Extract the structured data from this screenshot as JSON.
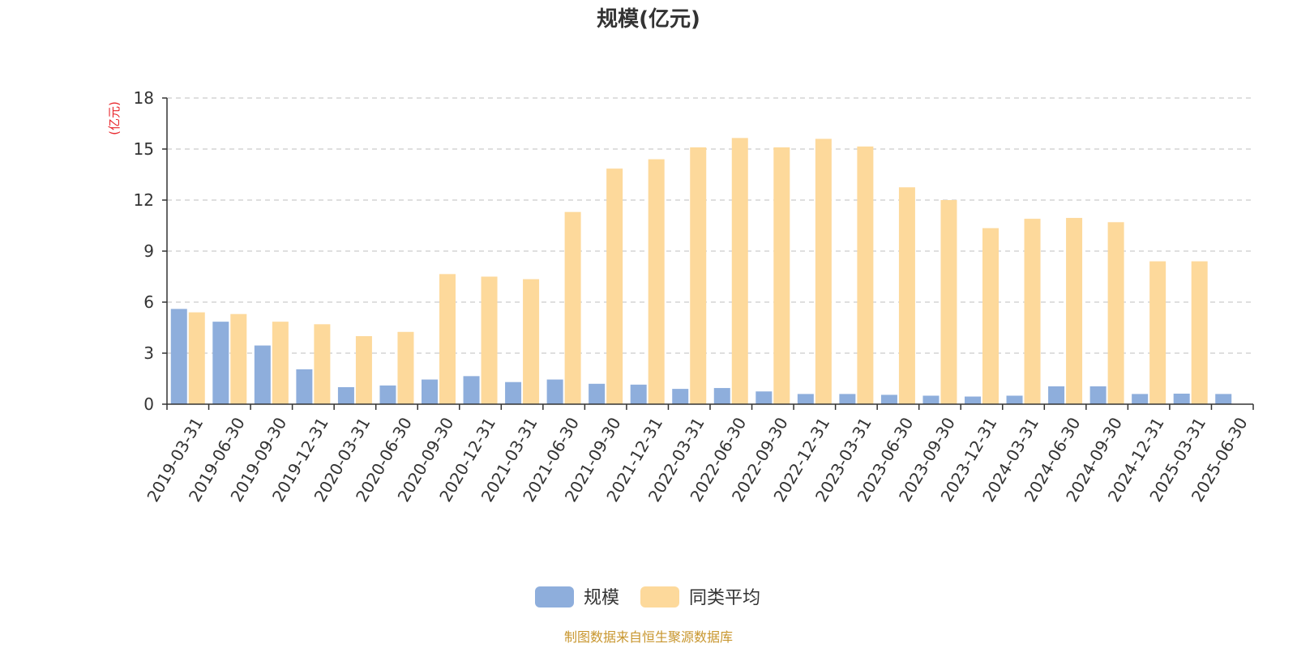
{
  "chart_data": {
    "type": "bar",
    "title": "规模(亿元)",
    "ylabel": "(亿元)",
    "xlabel": "",
    "ylim": [
      0,
      18
    ],
    "yticks": [
      0,
      3,
      6,
      9,
      12,
      15,
      18
    ],
    "grid": true,
    "legend_position": "bottom-center",
    "categories": [
      "2019-03-31",
      "2019-06-30",
      "2019-09-30",
      "2019-12-31",
      "2020-03-31",
      "2020-06-30",
      "2020-09-30",
      "2020-12-31",
      "2021-03-31",
      "2021-06-30",
      "2021-09-30",
      "2021-12-31",
      "2022-03-31",
      "2022-06-30",
      "2022-09-30",
      "2022-12-31",
      "2023-03-31",
      "2023-06-30",
      "2023-09-30",
      "2023-12-31",
      "2024-03-31",
      "2024-06-30",
      "2024-09-30",
      "2024-12-31",
      "2025-03-31",
      "2025-06-30"
    ],
    "series": [
      {
        "name": "规模",
        "color": "#8eaedc",
        "values": [
          5.6,
          4.85,
          3.45,
          2.05,
          1.0,
          1.1,
          1.45,
          1.65,
          1.3,
          1.45,
          1.2,
          1.15,
          0.9,
          0.95,
          0.75,
          0.6,
          0.6,
          0.55,
          0.5,
          0.45,
          0.5,
          1.05,
          1.05,
          0.6,
          0.62,
          0.6
        ]
      },
      {
        "name": "同类平均",
        "color": "#fdd99b",
        "values": [
          5.4,
          5.3,
          4.85,
          4.7,
          4.0,
          4.25,
          7.65,
          7.5,
          7.35,
          11.3,
          13.85,
          14.4,
          15.1,
          15.65,
          15.1,
          15.6,
          15.15,
          12.75,
          12.0,
          10.35,
          10.9,
          10.95,
          10.7,
          8.4,
          8.4,
          null
        ]
      }
    ]
  },
  "footer": {
    "source_text": "制图数据来自恒生聚源数据库"
  },
  "colors": {
    "title": "#333333",
    "unit_label": "#e8262b",
    "axis": "#333333",
    "grid": "#cccccc",
    "source_text": "#c8962e"
  }
}
